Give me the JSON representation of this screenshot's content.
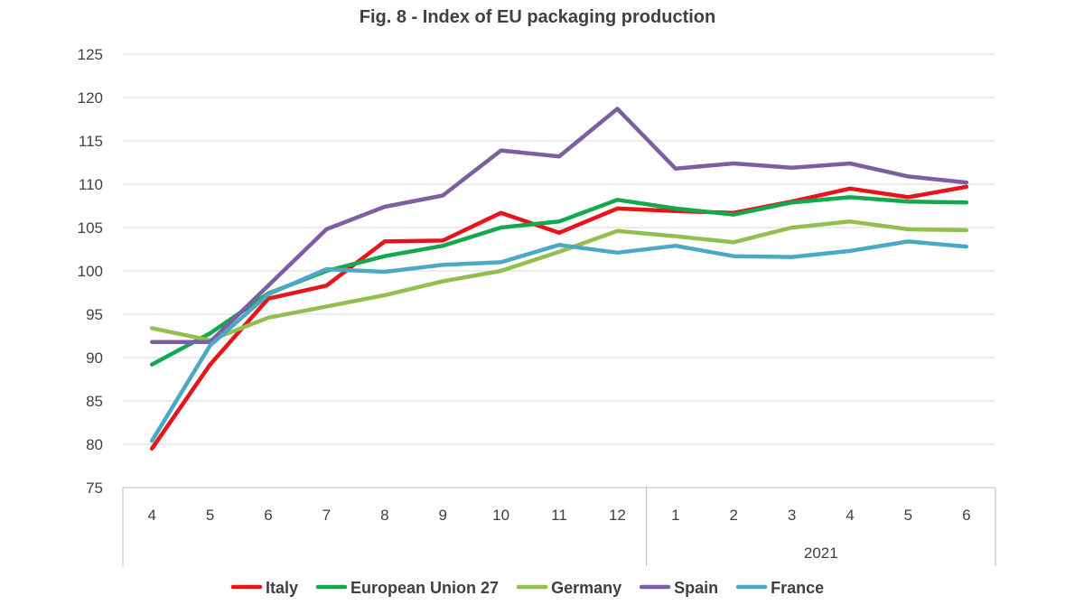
{
  "chart_data": {
    "type": "line",
    "title": "Fig. 8 - Index of EU packaging production",
    "categories": [
      "4",
      "5",
      "6",
      "7",
      "8",
      "9",
      "10",
      "11",
      "12",
      "1",
      "2",
      "3",
      "4",
      "5",
      "6"
    ],
    "group_labels": [
      "",
      "2021"
    ],
    "ylim": [
      75,
      125
    ],
    "yticks": [
      75,
      80,
      85,
      90,
      95,
      100,
      105,
      110,
      115,
      120,
      125
    ],
    "grid": true,
    "legend_position": "bottom",
    "series": [
      {
        "name": "Italy",
        "color": "#e8141c",
        "values": [
          79.5,
          89.2,
          96.8,
          98.3,
          103.4,
          103.5,
          106.7,
          104.4,
          107.2,
          106.9,
          106.7,
          108.0,
          109.5,
          108.5,
          109.7
        ]
      },
      {
        "name": "European Union 27",
        "color": "#13a84b",
        "values": [
          89.2,
          92.8,
          97.4,
          100.0,
          101.7,
          102.9,
          105.0,
          105.7,
          108.2,
          107.2,
          106.5,
          107.9,
          108.5,
          108.0,
          107.9
        ]
      },
      {
        "name": "Germany",
        "color": "#92c050",
        "values": [
          93.4,
          92.0,
          94.6,
          95.9,
          97.2,
          98.8,
          100.0,
          102.2,
          104.6,
          104.0,
          103.3,
          105.0,
          105.7,
          104.8,
          104.7
        ]
      },
      {
        "name": "Spain",
        "color": "#7d5fa1",
        "values": [
          91.8,
          91.8,
          98.3,
          104.8,
          107.4,
          108.7,
          113.9,
          113.2,
          118.7,
          111.8,
          112.4,
          111.9,
          112.4,
          110.9,
          110.2
        ]
      },
      {
        "name": "France",
        "color": "#4ba9c7",
        "values": [
          80.4,
          91.4,
          97.3,
          100.2,
          99.9,
          100.7,
          101.0,
          103.0,
          102.1,
          102.9,
          101.7,
          101.6,
          102.3,
          103.4,
          102.8
        ]
      }
    ]
  }
}
